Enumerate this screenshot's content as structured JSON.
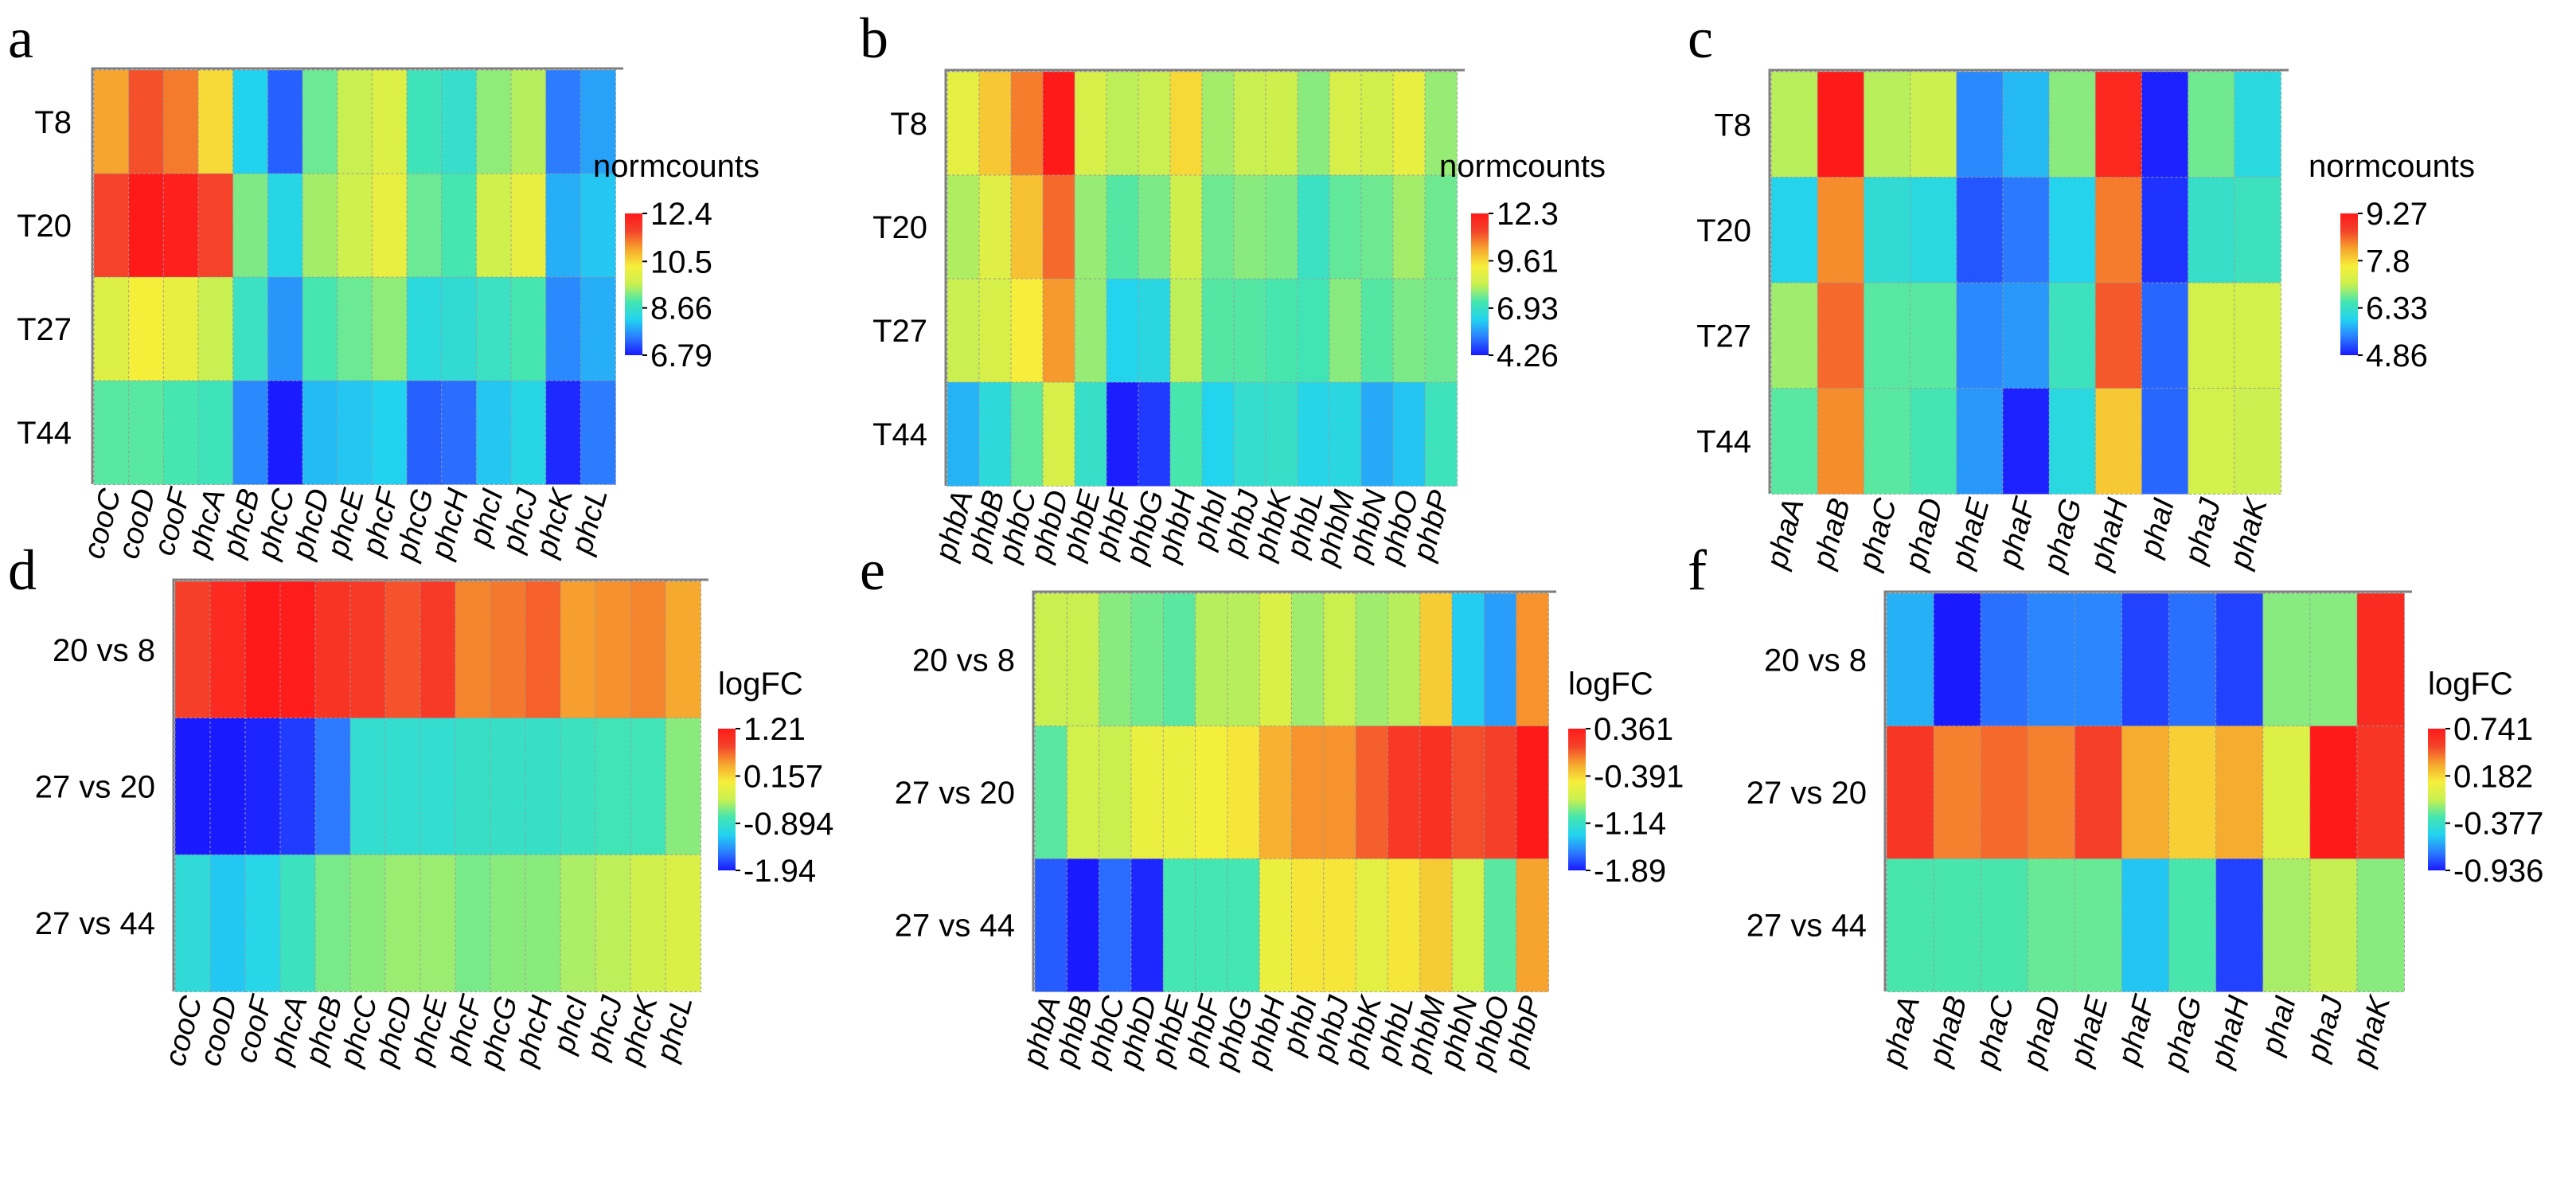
{
  "figure": {
    "colorscale": [
      "#1a1aff",
      "#2b7bff",
      "#22d3f0",
      "#44e6b0",
      "#c8f050",
      "#f6ef3a",
      "#f6a52e",
      "#f4432a",
      "#ff1a1a"
    ]
  },
  "chart_data": [
    {
      "panel": "a",
      "type": "heatmap",
      "rows": [
        "T8",
        "T20",
        "T27",
        "T44"
      ],
      "columns": [
        "cooC",
        "cooD",
        "cooF",
        "phcA",
        "phcB",
        "phcC",
        "phcD",
        "phcE",
        "phcF",
        "phcG",
        "phcH",
        "phcI",
        "phcJ",
        "phcK",
        "phcL"
      ],
      "values": [
        [
          11.0,
          11.6,
          11.3,
          10.5,
          8.2,
          7.3,
          9.1,
          9.6,
          9.9,
          8.8,
          8.6,
          9.3,
          9.5,
          7.5,
          7.8
        ],
        [
          11.7,
          12.4,
          12.3,
          11.7,
          9.2,
          8.3,
          9.4,
          9.7,
          10.1,
          9.1,
          8.9,
          9.7,
          10.1,
          7.9,
          8.1
        ],
        [
          9.9,
          10.3,
          10.1,
          9.6,
          8.7,
          7.7,
          8.9,
          9.1,
          9.3,
          8.4,
          8.5,
          8.7,
          8.9,
          7.6,
          7.9
        ],
        [
          9.0,
          9.0,
          8.9,
          8.8,
          7.6,
          6.8,
          8.0,
          8.1,
          8.2,
          7.3,
          7.4,
          8.1,
          8.3,
          6.9,
          7.5
        ]
      ],
      "legend_title": "normcounts",
      "legend_ticks": [
        "12.4",
        "10.5",
        "8.66",
        "6.79"
      ],
      "range": [
        6.79,
        12.4
      ]
    },
    {
      "panel": "b",
      "type": "heatmap",
      "rows": [
        "T8",
        "T20",
        "T27",
        "T44"
      ],
      "columns": [
        "phbA",
        "phbB",
        "phbC",
        "phbD",
        "phbE",
        "phbF",
        "phbG",
        "phbH",
        "phbI",
        "phbJ",
        "phbK",
        "phbL",
        "phbM",
        "phbN",
        "phbO",
        "phbP"
      ],
      "values": [
        [
          8.9,
          9.8,
          10.7,
          12.3,
          8.6,
          8.2,
          8.3,
          9.6,
          8.0,
          8.3,
          8.4,
          7.8,
          8.6,
          8.5,
          9.0,
          7.9
        ],
        [
          8.1,
          8.8,
          9.9,
          10.9,
          7.9,
          7.4,
          7.7,
          8.4,
          7.6,
          7.8,
          7.7,
          7.0,
          7.5,
          7.6,
          8.0,
          7.6
        ],
        [
          8.3,
          8.6,
          9.3,
          10.4,
          7.9,
          6.3,
          6.5,
          8.2,
          7.4,
          7.4,
          7.3,
          7.2,
          7.8,
          7.4,
          7.7,
          7.6
        ],
        [
          5.9,
          6.6,
          7.5,
          8.6,
          6.9,
          4.3,
          4.6,
          7.3,
          6.3,
          6.8,
          6.9,
          6.4,
          6.5,
          5.8,
          6.1,
          7.1
        ]
      ],
      "legend_title": "normcounts",
      "legend_ticks": [
        "12.3",
        "9.61",
        "6.93",
        "4.26"
      ],
      "range": [
        4.26,
        12.3
      ]
    },
    {
      "panel": "c",
      "type": "heatmap",
      "rows": [
        "T8",
        "T20",
        "T27",
        "T44"
      ],
      "columns": [
        "phaA",
        "phaB",
        "phaC",
        "phaD",
        "phaE",
        "phaF",
        "phaG",
        "phaH",
        "phaI",
        "phaJ",
        "phaK"
      ],
      "values": [
        [
          7.0,
          9.27,
          7.0,
          7.1,
          5.5,
          5.8,
          6.8,
          9.1,
          4.9,
          6.7,
          6.1
        ],
        [
          6.0,
          8.3,
          6.2,
          6.1,
          5.2,
          5.4,
          6.0,
          8.4,
          5.0,
          6.3,
          6.4
        ],
        [
          6.9,
          8.5,
          6.6,
          6.6,
          5.5,
          5.6,
          6.4,
          8.6,
          5.3,
          7.2,
          7.2
        ],
        [
          6.6,
          8.3,
          6.6,
          6.5,
          5.6,
          4.9,
          6.1,
          7.9,
          5.3,
          7.2,
          7.1
        ]
      ],
      "legend_title": "normcounts",
      "legend_ticks": [
        "9.27",
        "7.8",
        "6.33",
        "4.86"
      ],
      "range": [
        4.86,
        9.27
      ]
    },
    {
      "panel": "d",
      "type": "heatmap",
      "rows": [
        "20 vs 8",
        "27 vs 20",
        "27 vs 44"
      ],
      "columns": [
        "cooC",
        "cooD",
        "cooF",
        "phcA",
        "phcB",
        "phcC",
        "phcD",
        "phcE",
        "phcF",
        "phcG",
        "phcH",
        "phcI",
        "phcJ",
        "phcK",
        "phcL"
      ],
      "values": [
        [
          0.85,
          1.05,
          1.21,
          1.18,
          0.95,
          0.9,
          0.75,
          0.9,
          0.55,
          0.6,
          0.7,
          0.45,
          0.5,
          0.55,
          0.4
        ],
        [
          -1.94,
          -1.94,
          -1.9,
          -1.8,
          -1.55,
          -0.95,
          -0.95,
          -0.95,
          -0.9,
          -0.9,
          -0.9,
          -0.85,
          -0.8,
          -0.8,
          -0.55
        ],
        [
          -1.0,
          -1.2,
          -1.1,
          -0.85,
          -0.6,
          -0.55,
          -0.5,
          -0.5,
          -0.6,
          -0.55,
          -0.55,
          -0.45,
          -0.4,
          -0.3,
          -0.2
        ]
      ],
      "legend_title": "logFC",
      "legend_ticks": [
        "1.21",
        "0.157",
        "-0.894",
        "-1.94"
      ],
      "range": [
        -1.94,
        1.21
      ]
    },
    {
      "panel": "e",
      "type": "heatmap",
      "rows": [
        "20 vs 8",
        "27 vs 20",
        "27 vs 44"
      ],
      "columns": [
        "phbA",
        "phbB",
        "phbC",
        "phbD",
        "phbE",
        "phbF",
        "phbG",
        "phbH",
        "phbI",
        "phbJ",
        "phbK",
        "phbL",
        "phbM",
        "phbN",
        "phbO",
        "phbP"
      ],
      "values": [
        [
          -0.75,
          -0.75,
          -0.9,
          -0.95,
          -1.0,
          -0.8,
          -0.8,
          -0.65,
          -0.85,
          -0.75,
          -0.85,
          -0.8,
          -0.35,
          -1.35,
          -1.5,
          -0.15
        ],
        [
          -1.0,
          -0.7,
          -0.75,
          -0.55,
          -0.55,
          -0.5,
          -0.45,
          -0.25,
          -0.15,
          -0.15,
          0.0,
          0.15,
          0.2,
          0.05,
          0.1,
          0.361
        ],
        [
          -1.7,
          -1.89,
          -1.65,
          -1.85,
          -1.05,
          -1.05,
          -1.05,
          -0.55,
          -0.45,
          -0.45,
          -0.6,
          -0.45,
          -0.35,
          -0.7,
          -1.0,
          -0.2
        ]
      ],
      "legend_title": "logFC",
      "legend_ticks": [
        "0.361",
        "-0.391",
        "-1.14",
        "-1.89"
      ],
      "range": [
        -1.89,
        0.361
      ]
    },
    {
      "panel": "f",
      "type": "heatmap",
      "rows": [
        "20 vs 8",
        "27 vs 20",
        "27 vs 44"
      ],
      "columns": [
        "phaA",
        "phaB",
        "phaC",
        "phaD",
        "phaE",
        "phaF",
        "phaG",
        "phaH",
        "phaI",
        "phaJ",
        "phaK"
      ],
      "values": [
        [
          -0.6,
          -0.936,
          -0.75,
          -0.7,
          -0.7,
          -0.85,
          -0.75,
          -0.85,
          -0.2,
          -0.2,
          0.65
        ],
        [
          0.6,
          0.4,
          0.45,
          0.4,
          0.55,
          0.3,
          0.2,
          0.3,
          0.0,
          0.741,
          0.6
        ],
        [
          -0.3,
          -0.3,
          -0.3,
          -0.25,
          -0.25,
          -0.55,
          -0.3,
          -0.85,
          -0.15,
          -0.1,
          -0.2
        ]
      ],
      "legend_title": "logFC",
      "legend_ticks": [
        "0.741",
        "0.182",
        "-0.377",
        "-0.936"
      ],
      "range": [
        -0.936,
        0.741
      ]
    }
  ]
}
